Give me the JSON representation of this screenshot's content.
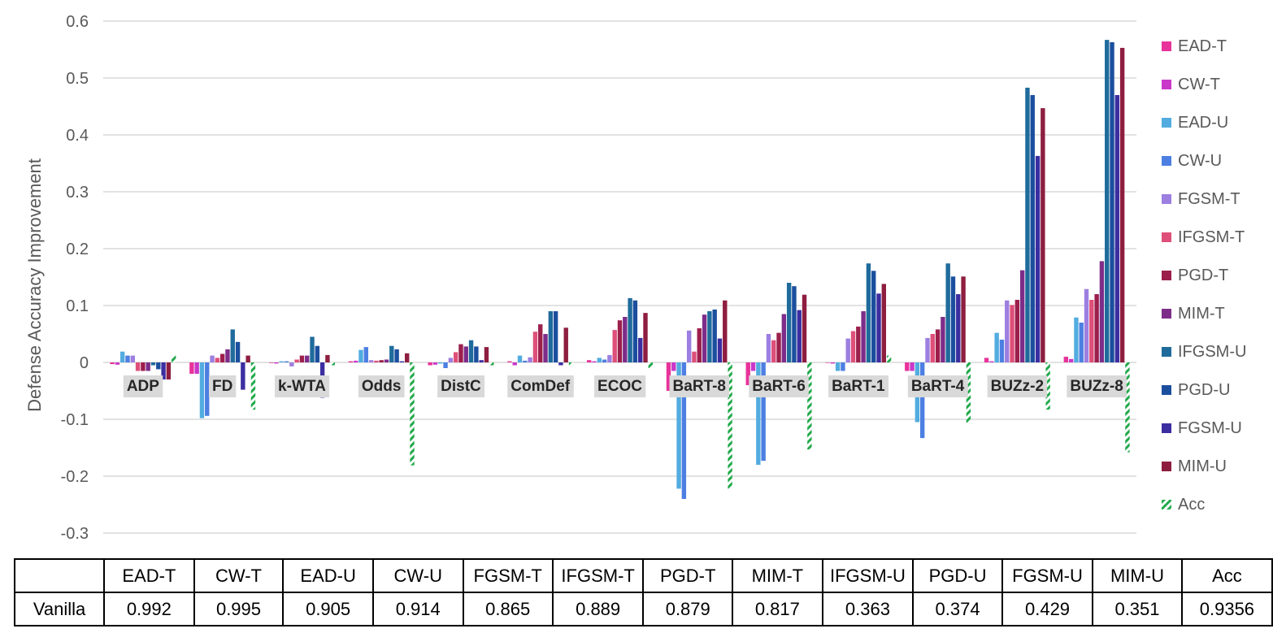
{
  "chart_data": {
    "type": "bar",
    "title": "",
    "xlabel": "",
    "ylabel": "Defense Accuracy Improvement",
    "ylim": [
      -0.3,
      0.6
    ],
    "yticks": [
      "0.6",
      "0.5",
      "0.4",
      "0.3",
      "0.2",
      "0.1",
      "0",
      "-0.1",
      "-0.2",
      "-0.3"
    ],
    "grid": true,
    "legend_position": "right",
    "categories": [
      "ADP",
      "FD",
      "k-WTA",
      "Odds",
      "DistC",
      "ComDef",
      "ECOC",
      "BaRT-8",
      "BaRT-6",
      "BaRT-1",
      "BaRT-4",
      "BUZz-2",
      "BUZz-8"
    ],
    "series": [
      {
        "name": "EAD-T",
        "color": "#E8339A",
        "values": [
          -0.003,
          -0.02,
          -0.001,
          0.002,
          -0.005,
          0.002,
          0.004,
          -0.05,
          -0.04,
          0.0,
          -0.015,
          0.008,
          0.01
        ]
      },
      {
        "name": "CW-T",
        "color": "#C938C9",
        "values": [
          -0.004,
          -0.02,
          -0.002,
          0.003,
          -0.004,
          -0.005,
          0.002,
          -0.015,
          -0.015,
          -0.002,
          -0.015,
          0.002,
          0.006
        ]
      },
      {
        "name": "EAD-U",
        "color": "#52ACDF",
        "values": [
          0.019,
          -0.098,
          0.002,
          0.022,
          -0.002,
          0.012,
          0.008,
          -0.222,
          -0.18,
          -0.015,
          -0.105,
          0.052,
          0.079
        ]
      },
      {
        "name": "CW-U",
        "color": "#4D7FE2",
        "values": [
          0.012,
          -0.094,
          0.002,
          0.027,
          -0.01,
          0.003,
          0.005,
          -0.24,
          -0.173,
          -0.015,
          -0.133,
          0.04,
          0.07
        ]
      },
      {
        "name": "FGSM-T",
        "color": "#9C7FE0",
        "values": [
          0.012,
          0.012,
          -0.007,
          0.004,
          0.008,
          0.009,
          0.013,
          0.056,
          0.05,
          0.042,
          0.043,
          0.109,
          0.129
        ]
      },
      {
        "name": "IFGSM-T",
        "color": "#DE4F79",
        "values": [
          -0.015,
          0.008,
          0.005,
          0.003,
          0.018,
          0.054,
          0.057,
          0.019,
          0.039,
          0.055,
          0.05,
          0.101,
          0.11
        ]
      },
      {
        "name": "PGD-T",
        "color": "#9C1F4C",
        "values": [
          -0.015,
          0.015,
          0.012,
          0.004,
          0.032,
          0.067,
          0.074,
          0.06,
          0.052,
          0.063,
          0.058,
          0.11,
          0.12
        ]
      },
      {
        "name": "MIM-T",
        "color": "#7D2D89",
        "values": [
          -0.015,
          0.023,
          0.012,
          0.005,
          0.028,
          0.05,
          0.08,
          0.084,
          0.085,
          0.09,
          0.08,
          0.162,
          0.178
        ]
      },
      {
        "name": "IFGSM-U",
        "color": "#1F6B9C",
        "values": [
          -0.005,
          0.058,
          0.045,
          0.029,
          0.039,
          0.09,
          0.113,
          0.09,
          0.14,
          0.174,
          0.174,
          0.483,
          0.567
        ]
      },
      {
        "name": "PGD-U",
        "color": "#1B4F9E",
        "values": [
          -0.012,
          0.036,
          0.029,
          0.023,
          0.028,
          0.09,
          0.109,
          0.093,
          0.134,
          0.161,
          0.151,
          0.47,
          0.563
        ]
      },
      {
        "name": "FGSM-U",
        "color": "#3C2EA1",
        "values": [
          -0.03,
          -0.048,
          -0.062,
          0.002,
          0.004,
          -0.005,
          0.043,
          0.042,
          0.092,
          0.121,
          0.12,
          0.363,
          0.47
        ]
      },
      {
        "name": "MIM-U",
        "color": "#8E1E40",
        "values": [
          -0.03,
          0.012,
          0.013,
          0.016,
          0.027,
          0.061,
          0.087,
          0.109,
          0.119,
          0.138,
          0.151,
          0.447,
          0.553
        ]
      },
      {
        "name": "Acc",
        "color": "#22A94B",
        "pattern": "diagonal-hatch",
        "values": [
          0.012,
          -0.083,
          -0.005,
          -0.181,
          -0.005,
          -0.005,
          -0.01,
          -0.222,
          -0.153,
          0.012,
          -0.106,
          -0.083,
          -0.158
        ]
      }
    ]
  },
  "table": {
    "header": [
      "",
      "EAD-T",
      "CW-T",
      "EAD-U",
      "CW-U",
      "FGSM-T",
      "IFGSM-T",
      "PGD-T",
      "MIM-T",
      "IFGSM-U",
      "PGD-U",
      "FGSM-U",
      "MIM-U",
      "Acc"
    ],
    "rows": [
      [
        "Vanilla",
        "0.992",
        "0.995",
        "0.905",
        "0.914",
        "0.865",
        "0.889",
        "0.879",
        "0.817",
        "0.363",
        "0.374",
        "0.429",
        "0.351",
        "0.9356"
      ]
    ]
  }
}
